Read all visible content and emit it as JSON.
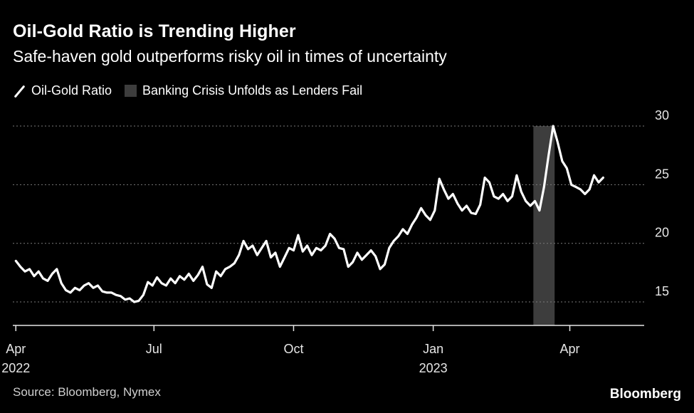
{
  "header": {
    "title": "Oil-Gold Ratio is Trending Higher",
    "subtitle": "Safe-haven gold outperforms risky oil in times of uncertainty"
  },
  "legend": {
    "series_label": "Oil-Gold Ratio",
    "band_label": "Banking Crisis Unfolds as Lenders Fail"
  },
  "footer": {
    "source": "Source: Bloomberg, Nymex",
    "brand": "Bloomberg"
  },
  "colors": {
    "background": "#000000",
    "line": "#ffffff",
    "band": "#3d3d3d",
    "grid": "#7a7a7a"
  },
  "chart_data": {
    "type": "line",
    "title": "Oil-Gold Ratio is Trending Higher",
    "xlabel": "",
    "ylabel": "",
    "ylim": [
      13,
      30
    ],
    "xlim": [
      "2022-03-30",
      "2023-05-20"
    ],
    "y_ticks": [
      15,
      20,
      25,
      30
    ],
    "y_axis_position": "right",
    "grid": "horizontal dotted",
    "x_ticks": [
      {
        "date": "2022-04-01",
        "label": "Apr",
        "sublabel": "2022"
      },
      {
        "date": "2022-07-01",
        "label": "Jul",
        "sublabel": ""
      },
      {
        "date": "2022-10-01",
        "label": "Oct",
        "sublabel": ""
      },
      {
        "date": "2023-01-01",
        "label": "Jan",
        "sublabel": "2023"
      },
      {
        "date": "2023-04-01",
        "label": "Apr",
        "sublabel": ""
      }
    ],
    "shaded_region": {
      "label": "Banking Crisis Unfolds as Lenders Fail",
      "start": "2023-03-08",
      "end": "2023-03-22"
    },
    "series": [
      {
        "name": "Oil-Gold Ratio",
        "points": [
          [
            "2022-04-01",
            18.5
          ],
          [
            "2022-04-04",
            18.0
          ],
          [
            "2022-04-07",
            17.6
          ],
          [
            "2022-04-10",
            17.8
          ],
          [
            "2022-04-13",
            17.2
          ],
          [
            "2022-04-16",
            17.6
          ],
          [
            "2022-04-19",
            17.0
          ],
          [
            "2022-04-22",
            16.8
          ],
          [
            "2022-04-25",
            17.4
          ],
          [
            "2022-04-28",
            17.8
          ],
          [
            "2022-05-01",
            16.6
          ],
          [
            "2022-05-04",
            16.0
          ],
          [
            "2022-05-07",
            15.8
          ],
          [
            "2022-05-10",
            16.2
          ],
          [
            "2022-05-13",
            16.0
          ],
          [
            "2022-05-16",
            16.4
          ],
          [
            "2022-05-19",
            16.6
          ],
          [
            "2022-05-22",
            16.2
          ],
          [
            "2022-05-25",
            16.4
          ],
          [
            "2022-05-28",
            15.9
          ],
          [
            "2022-05-31",
            15.8
          ],
          [
            "2022-06-03",
            15.8
          ],
          [
            "2022-06-06",
            15.6
          ],
          [
            "2022-06-09",
            15.5
          ],
          [
            "2022-06-12",
            15.2
          ],
          [
            "2022-06-15",
            15.3
          ],
          [
            "2022-06-18",
            15.0
          ],
          [
            "2022-06-21",
            15.1
          ],
          [
            "2022-06-24",
            15.6
          ],
          [
            "2022-06-27",
            16.7
          ],
          [
            "2022-06-30",
            16.4
          ],
          [
            "2022-07-03",
            17.1
          ],
          [
            "2022-07-06",
            16.6
          ],
          [
            "2022-07-09",
            16.4
          ],
          [
            "2022-07-12",
            17.0
          ],
          [
            "2022-07-15",
            16.6
          ],
          [
            "2022-07-18",
            17.2
          ],
          [
            "2022-07-21",
            16.9
          ],
          [
            "2022-07-24",
            17.4
          ],
          [
            "2022-07-27",
            16.8
          ],
          [
            "2022-07-30",
            17.3
          ],
          [
            "2022-08-02",
            18.0
          ],
          [
            "2022-08-05",
            16.5
          ],
          [
            "2022-08-08",
            16.2
          ],
          [
            "2022-08-11",
            17.6
          ],
          [
            "2022-08-14",
            17.2
          ],
          [
            "2022-08-17",
            17.8
          ],
          [
            "2022-08-20",
            18.0
          ],
          [
            "2022-08-23",
            18.3
          ],
          [
            "2022-08-26",
            19.0
          ],
          [
            "2022-08-29",
            20.2
          ],
          [
            "2022-09-01",
            19.5
          ],
          [
            "2022-09-04",
            19.8
          ],
          [
            "2022-09-07",
            19.0
          ],
          [
            "2022-09-10",
            19.6
          ],
          [
            "2022-09-13",
            20.2
          ],
          [
            "2022-09-16",
            18.8
          ],
          [
            "2022-09-19",
            19.2
          ],
          [
            "2022-09-22",
            18.0
          ],
          [
            "2022-09-25",
            18.8
          ],
          [
            "2022-09-28",
            19.6
          ],
          [
            "2022-10-01",
            19.4
          ],
          [
            "2022-10-04",
            20.7
          ],
          [
            "2022-10-07",
            19.3
          ],
          [
            "2022-10-10",
            19.8
          ],
          [
            "2022-10-13",
            19.0
          ],
          [
            "2022-10-16",
            19.6
          ],
          [
            "2022-10-19",
            19.4
          ],
          [
            "2022-10-22",
            19.8
          ],
          [
            "2022-10-25",
            20.8
          ],
          [
            "2022-10-28",
            20.4
          ],
          [
            "2022-10-31",
            19.6
          ],
          [
            "2022-11-03",
            19.5
          ],
          [
            "2022-11-06",
            18.0
          ],
          [
            "2022-11-09",
            18.4
          ],
          [
            "2022-11-12",
            19.2
          ],
          [
            "2022-11-15",
            18.6
          ],
          [
            "2022-11-18",
            19.0
          ],
          [
            "2022-11-21",
            19.4
          ],
          [
            "2022-11-24",
            18.9
          ],
          [
            "2022-11-27",
            17.8
          ],
          [
            "2022-11-30",
            18.2
          ],
          [
            "2022-12-03",
            19.6
          ],
          [
            "2022-12-06",
            20.2
          ],
          [
            "2022-12-09",
            20.6
          ],
          [
            "2022-12-12",
            21.2
          ],
          [
            "2022-12-15",
            20.8
          ],
          [
            "2022-12-18",
            21.6
          ],
          [
            "2022-12-21",
            22.2
          ],
          [
            "2022-12-24",
            23.0
          ],
          [
            "2022-12-27",
            22.4
          ],
          [
            "2022-12-30",
            22.0
          ],
          [
            "2023-01-02",
            22.8
          ],
          [
            "2023-01-05",
            25.5
          ],
          [
            "2023-01-08",
            24.6
          ],
          [
            "2023-01-11",
            23.8
          ],
          [
            "2023-01-14",
            24.2
          ],
          [
            "2023-01-17",
            23.4
          ],
          [
            "2023-01-20",
            22.8
          ],
          [
            "2023-01-23",
            23.2
          ],
          [
            "2023-01-26",
            22.6
          ],
          [
            "2023-01-29",
            22.5
          ],
          [
            "2023-02-01",
            23.3
          ],
          [
            "2023-02-04",
            25.6
          ],
          [
            "2023-02-07",
            25.2
          ],
          [
            "2023-02-10",
            24.0
          ],
          [
            "2023-02-13",
            23.8
          ],
          [
            "2023-02-16",
            24.2
          ],
          [
            "2023-02-19",
            23.6
          ],
          [
            "2023-02-22",
            24.0
          ],
          [
            "2023-02-25",
            25.8
          ],
          [
            "2023-02-28",
            24.4
          ],
          [
            "2023-03-03",
            23.6
          ],
          [
            "2023-03-06",
            23.2
          ],
          [
            "2023-03-09",
            23.6
          ],
          [
            "2023-03-12",
            22.8
          ],
          [
            "2023-03-15",
            24.8
          ],
          [
            "2023-03-18",
            27.5
          ],
          [
            "2023-03-21",
            30.0
          ],
          [
            "2023-03-24",
            28.6
          ],
          [
            "2023-03-27",
            27.0
          ],
          [
            "2023-03-30",
            26.4
          ],
          [
            "2023-04-02",
            25.0
          ],
          [
            "2023-04-05",
            24.8
          ],
          [
            "2023-04-08",
            24.6
          ],
          [
            "2023-04-11",
            24.2
          ],
          [
            "2023-04-14",
            24.6
          ],
          [
            "2023-04-17",
            25.8
          ],
          [
            "2023-04-20",
            25.2
          ],
          [
            "2023-04-23",
            25.6
          ]
        ]
      }
    ]
  }
}
